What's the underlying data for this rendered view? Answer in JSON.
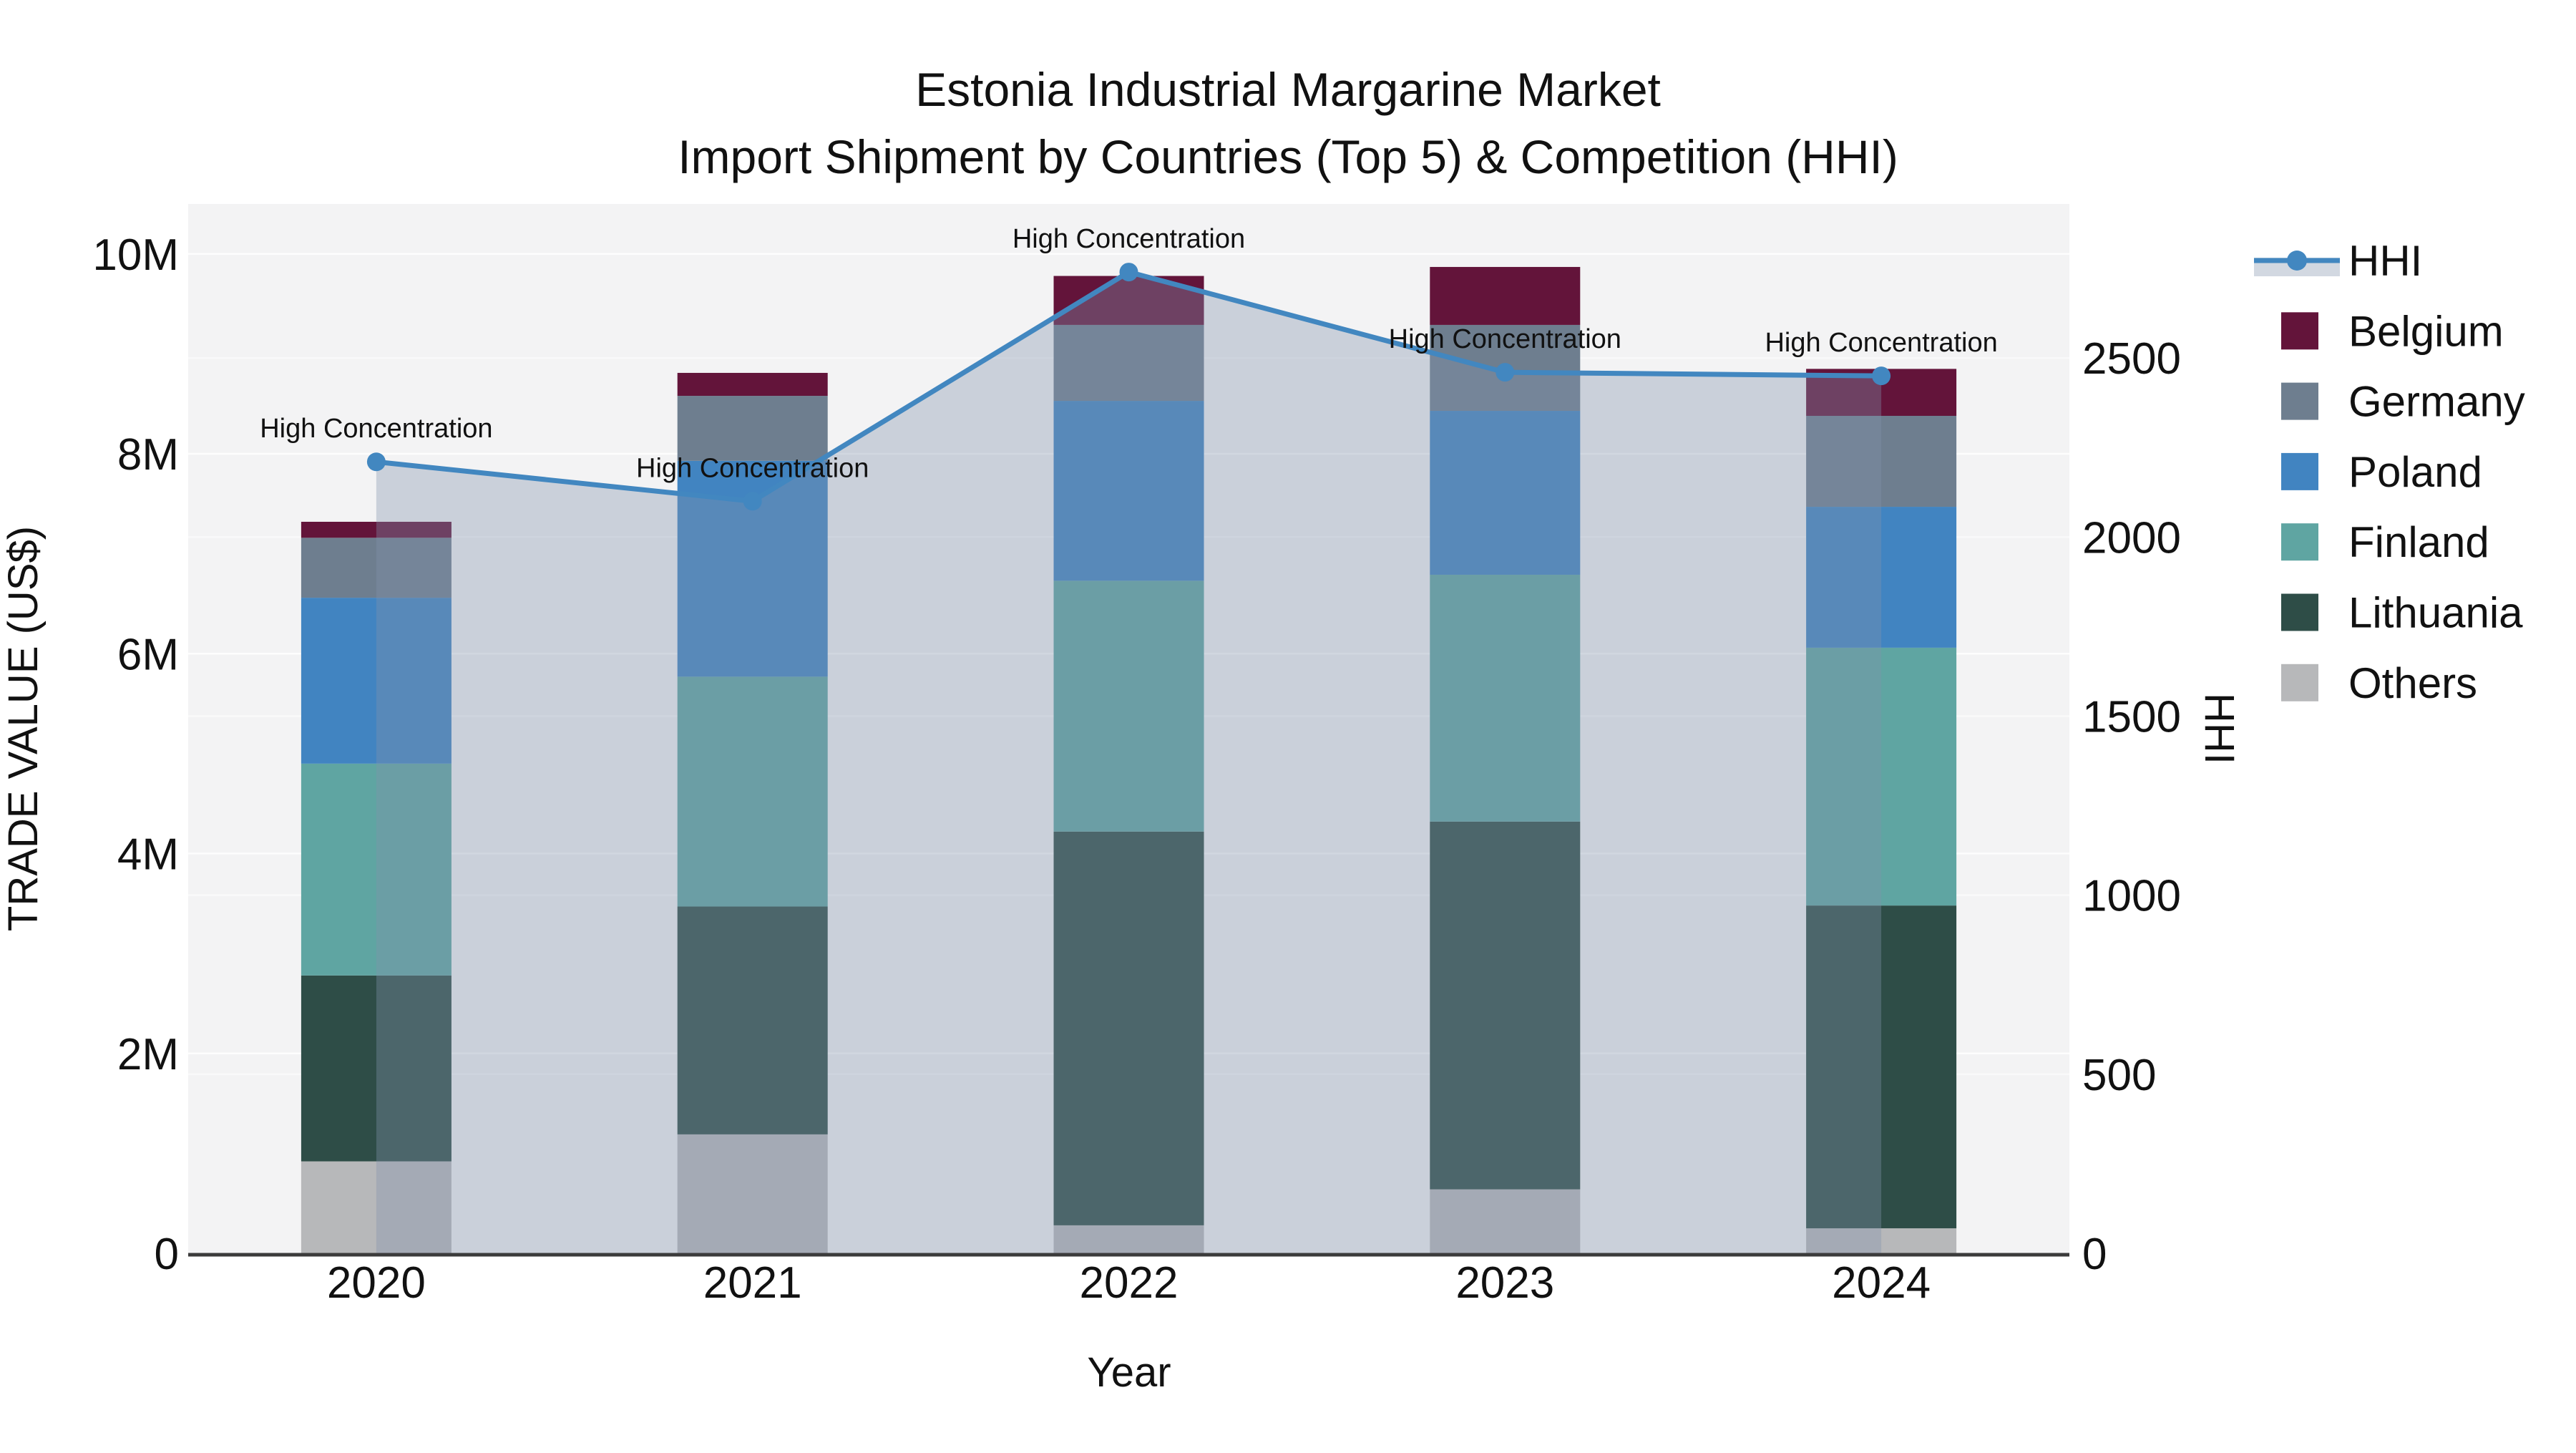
{
  "title": {
    "line1": "Estonia Industrial Margarine Market",
    "line2": "Import Shipment by Countries (Top 5) & Competition (HHI)"
  },
  "axes": {
    "x_label": "Year",
    "y_left_label": "TRADE VALUE (US$)",
    "y_right_label": "HHI",
    "y_left_ticks": [
      "0",
      "2M",
      "4M",
      "6M",
      "8M",
      "10M"
    ],
    "y_left_tick_values_millions": [
      0,
      2,
      4,
      6,
      8,
      10
    ],
    "y_right_ticks": [
      "0",
      "500",
      "1000",
      "1500",
      "2000",
      "2500"
    ],
    "y_right_tick_values": [
      0,
      500,
      1000,
      1500,
      2000,
      2500
    ],
    "y_left_max_millions": 10.5,
    "y_right_max": 2930
  },
  "chart_data": {
    "type": "combo-stacked-bar-line",
    "categories": [
      "2020",
      "2021",
      "2022",
      "2023",
      "2024"
    ],
    "value_unit": "million US$",
    "series": [
      {
        "name": "Others",
        "color": "#b7b8ba",
        "values": [
          0.92,
          1.19,
          0.28,
          0.64,
          0.25
        ]
      },
      {
        "name": "Lithuania",
        "color": "#2e4d47",
        "values": [
          1.86,
          2.28,
          3.94,
          3.68,
          3.23
        ]
      },
      {
        "name": "Finland",
        "color": "#5fa5a2",
        "values": [
          2.12,
          2.3,
          2.51,
          2.47,
          2.58
        ]
      },
      {
        "name": "Poland",
        "color": "#4184c1",
        "values": [
          1.66,
          2.16,
          1.8,
          1.64,
          1.41
        ]
      },
      {
        "name": "Germany",
        "color": "#6e7e8f",
        "values": [
          0.6,
          0.65,
          0.76,
          0.86,
          0.91
        ]
      },
      {
        "name": "Belgium",
        "color": "#63143a",
        "values": [
          0.16,
          0.23,
          0.49,
          0.58,
          0.47
        ]
      }
    ],
    "line_series": {
      "name": "HHI",
      "color": "#4287c0",
      "area_fill": "rgba(130,148,172,0.36)",
      "values": [
        2210,
        2100,
        2740,
        2460,
        2450
      ]
    },
    "annotations": [
      {
        "text": "High Concentration",
        "category": "2020"
      },
      {
        "text": "High Concentration",
        "category": "2021"
      },
      {
        "text": "High Concentration",
        "category": "2022"
      },
      {
        "text": "High Concentration",
        "category": "2023"
      },
      {
        "text": "High Concentration",
        "category": "2024"
      }
    ],
    "layout": {
      "plot_bg": "#f3f3f4",
      "grid_color": "#ffffff",
      "axis_line_color": "#3b3b3b",
      "grid_on": true,
      "legend_position": "right"
    }
  },
  "legend": {
    "items": [
      {
        "label": "HHI",
        "type": "line"
      },
      {
        "label": "Belgium",
        "type": "square",
        "color": "#63143a"
      },
      {
        "label": "Germany",
        "type": "square",
        "color": "#6e7e8f"
      },
      {
        "label": "Poland",
        "type": "square",
        "color": "#4184c1"
      },
      {
        "label": "Finland",
        "type": "square",
        "color": "#5fa5a2"
      },
      {
        "label": "Lithuania",
        "type": "square",
        "color": "#2e4d47"
      },
      {
        "label": "Others",
        "type": "square",
        "color": "#b7b8ba"
      }
    ]
  }
}
